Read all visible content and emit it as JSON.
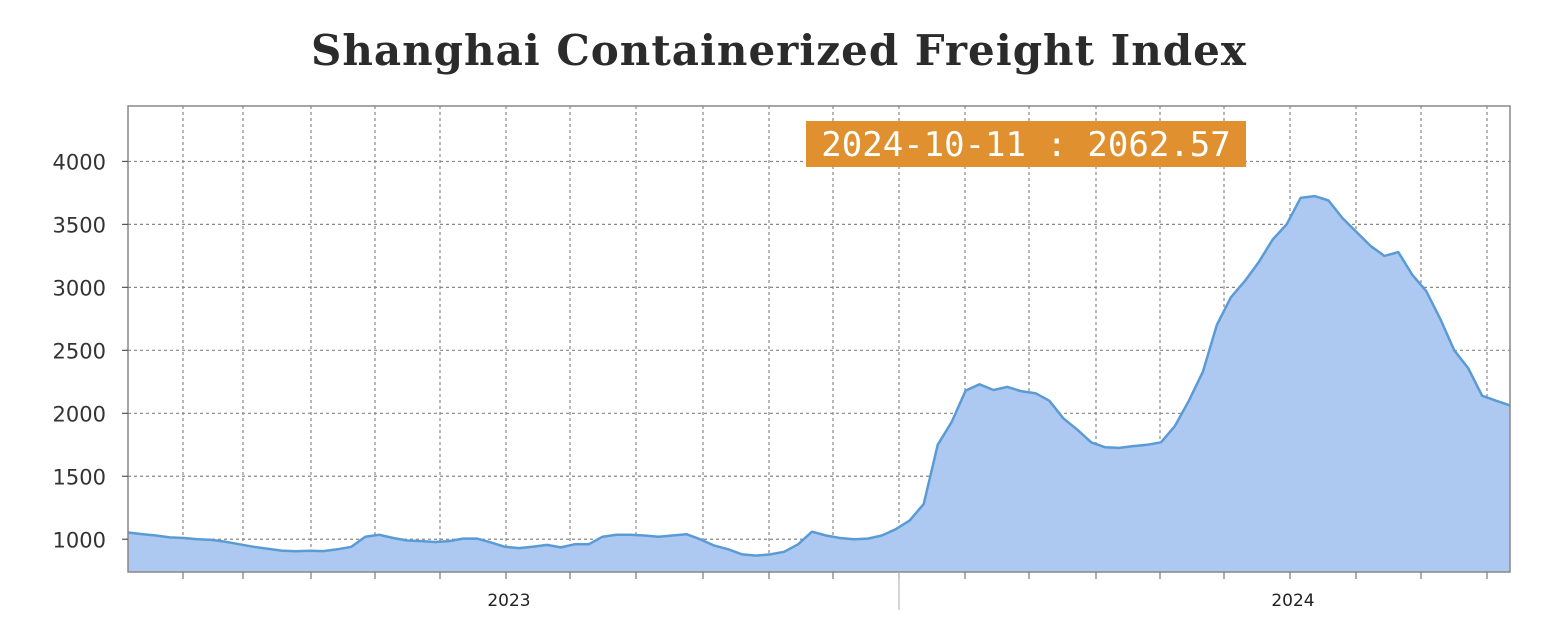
{
  "colors": {
    "area_fill": "#adc9f1",
    "line": "#5b9bd5",
    "grid": "#888888",
    "tooltip_bg": "#e0902f",
    "tooltip_text": "#ffffff",
    "plot_border": "#888888"
  },
  "tooltip": {
    "text": "2024-10-11 : 2062.57"
  },
  "chart_data": {
    "type": "area",
    "title": "Shanghai Containerized Freight Index",
    "xlabel": "",
    "ylabel": "",
    "ylim": [
      740,
      4440
    ],
    "yticks": [
      1000,
      1500,
      2000,
      2500,
      3000,
      3500,
      4000
    ],
    "x_tick_labels": [
      "2023",
      "2024"
    ],
    "grid": true,
    "series": [
      {
        "values": [
          1054,
          1041,
          1030,
          1015,
          1010,
          1000,
          995,
          980,
          960,
          940,
          925,
          910,
          905,
          908,
          906,
          920,
          940,
          1020,
          1035,
          1010,
          990,
          985,
          978,
          985,
          1005,
          1005,
          975,
          940,
          930,
          940,
          955,
          935,
          960,
          960,
          1020,
          1035,
          1035,
          1030,
          1020,
          1030,
          1040,
          1000,
          950,
          920,
          880,
          870,
          880,
          900,
          960,
          1060,
          1030,
          1010,
          1000,
          1005,
          1030,
          1080,
          1150,
          1280,
          1750,
          1930,
          2180,
          2230,
          2185,
          2210,
          2175,
          2160,
          2100,
          1960,
          1870,
          1770,
          1730,
          1725,
          1740,
          1750,
          1770,
          1900,
          2100,
          2330,
          2700,
          2920,
          3050,
          3200,
          3380,
          3500,
          3710,
          3725,
          3690,
          3550,
          3440,
          3330,
          3250,
          3280,
          3100,
          2970,
          2750,
          2500,
          2360,
          2140,
          2100,
          2062.57
        ]
      }
    ]
  }
}
